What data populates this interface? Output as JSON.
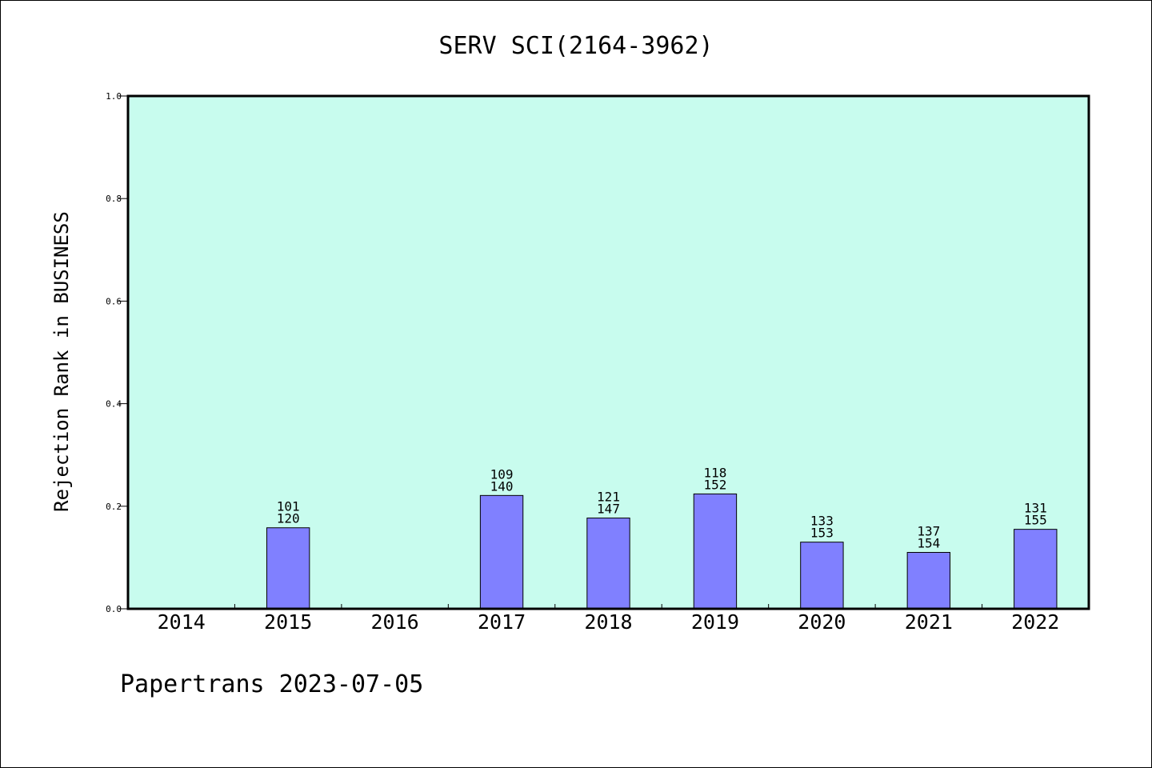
{
  "chart_data": {
    "type": "bar",
    "title": "SERV SCI(2164-3962)",
    "xlabel": "",
    "ylabel": "Rejection Rank in BUSINESS",
    "ylim": [
      0,
      1.0
    ],
    "yticks": [
      "0.0",
      "0.2",
      "0.4",
      "0.6",
      "0.8",
      "1.0"
    ],
    "categories": [
      "2014",
      "2015",
      "2016",
      "2017",
      "2018",
      "2019",
      "2020",
      "2021",
      "2022"
    ],
    "values": [
      null,
      0.158,
      null,
      0.221,
      0.177,
      0.224,
      0.13,
      0.11,
      0.155
    ],
    "labels_top": [
      null,
      "101",
      null,
      "109",
      "121",
      "118",
      "133",
      "137",
      "131"
    ],
    "labels_bottom": [
      null,
      "120",
      null,
      "140",
      "147",
      "152",
      "153",
      "154",
      "155"
    ],
    "grid": false,
    "colors": {
      "plot_bg": "#c8fcee",
      "bar": "#8080ff",
      "bar_edge": "#000000"
    }
  },
  "footer": {
    "text": "Papertrans 2023-07-05"
  }
}
